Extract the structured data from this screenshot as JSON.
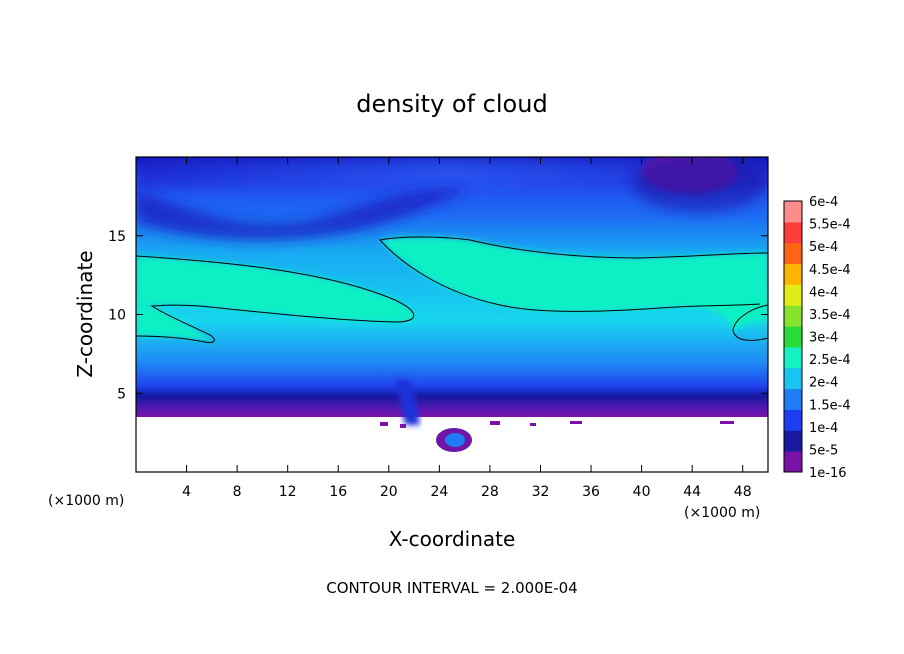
{
  "chart_data": {
    "type": "heatmap",
    "title": "density of cloud",
    "xlabel": "X-coordinate",
    "ylabel": "Z-coordinate",
    "x_unit": "(×1000 m)",
    "y_unit": "(×1000 m)",
    "xlim": [
      0,
      50
    ],
    "ylim": [
      0,
      20
    ],
    "x_ticks": [
      4,
      8,
      12,
      16,
      20,
      24,
      28,
      32,
      36,
      40,
      44,
      48
    ],
    "y_ticks": [
      5,
      10,
      15
    ],
    "footnote": "CONTOUR INTERVAL = 2.000E-04",
    "colorbar": {
      "labels": [
        "1e-16",
        "5e-5",
        "1e-4",
        "1.5e-4",
        "2e-4",
        "2.5e-4",
        "3e-4",
        "3.5e-4",
        "4e-4",
        "4.5e-4",
        "5e-4",
        "5.5e-4",
        "6e-4"
      ],
      "colors": [
        "#7a12a8",
        "#1a1aa0",
        "#1e3cf0",
        "#1f7cf5",
        "#18c4f0",
        "#14f2c4",
        "#28dc3c",
        "#86e22a",
        "#e0ec14",
        "#ffb400",
        "#ff6414",
        "#ff3c3c",
        "#ff8c8c"
      ]
    },
    "contour_levels": [
      0.0002
    ],
    "grid": false
  }
}
